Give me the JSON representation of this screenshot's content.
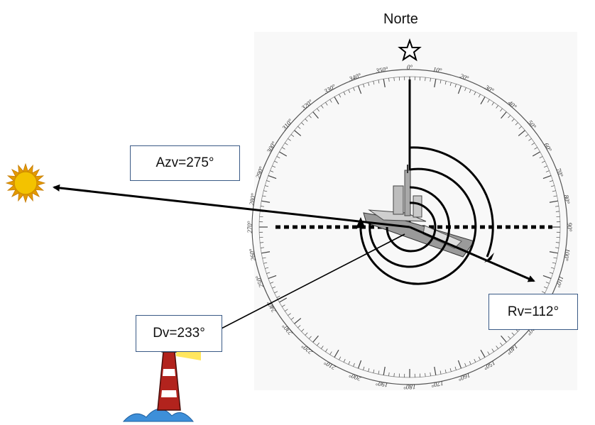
{
  "north_label": "Norte",
  "azimuth_label": "Azv=275°",
  "course_label": "Rv=112°",
  "bearing_label": "Dv=233°",
  "bearings_deg": {
    "azimuth": 275,
    "course": 112,
    "bearing": 233
  },
  "compass_ticks": [
    "0°",
    "10°",
    "20°",
    "30°",
    "40°",
    "50°",
    "60°",
    "70°",
    "80°",
    "90°",
    "100°",
    "110°",
    "120°",
    "130°",
    "140°",
    "150°",
    "160°",
    "170°",
    "180°",
    "190°",
    "200°",
    "210°",
    "220°",
    "230°",
    "240°",
    "250°",
    "260°",
    "270°",
    "280°",
    "290°",
    "300°",
    "310°",
    "320°",
    "330°",
    "340°",
    "350°"
  ],
  "colors": {
    "lines": "#000000",
    "box_border": "#3a5a86",
    "sun": "#f3c200",
    "sun_rays": "#e39a00",
    "lighthouse_red": "#b2231d",
    "sea": "#3d8fd9",
    "beam": "#ffe34d"
  }
}
